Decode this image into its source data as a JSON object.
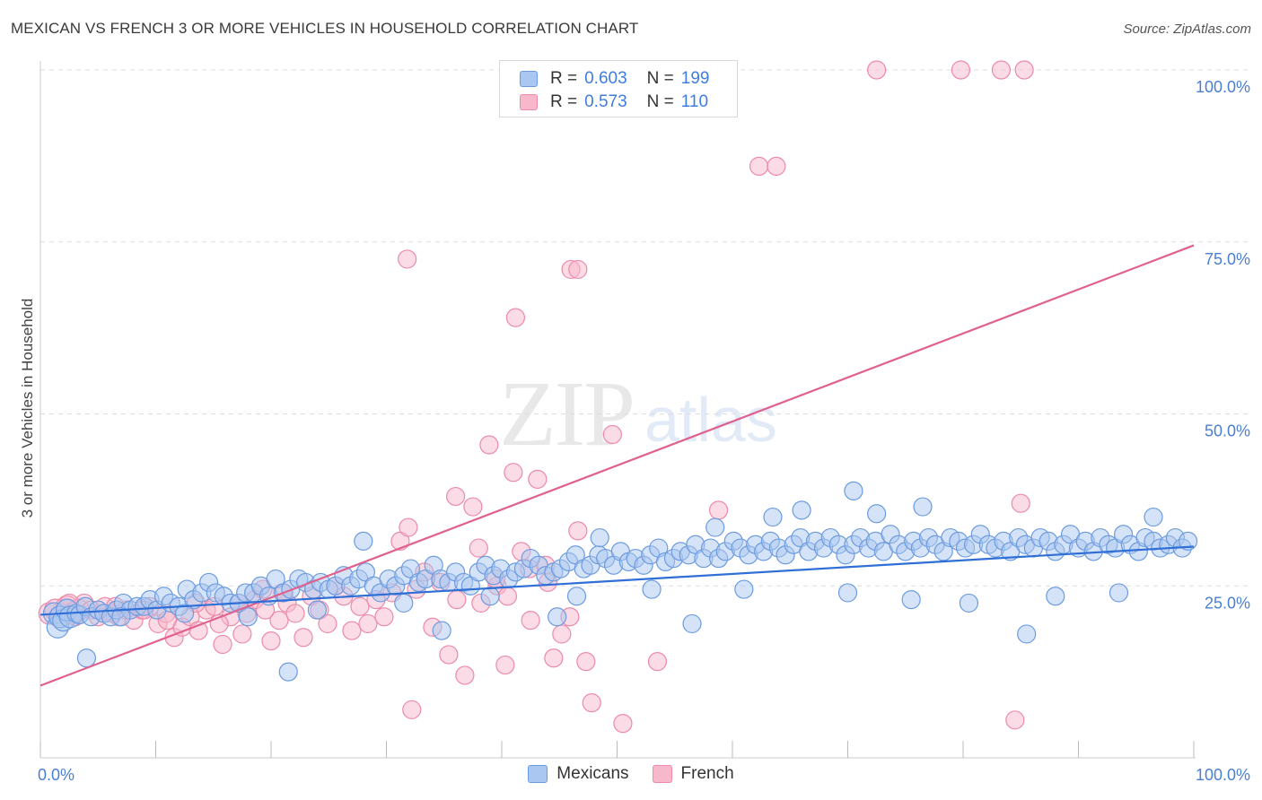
{
  "title": "MEXICAN VS FRENCH 3 OR MORE VEHICLES IN HOUSEHOLD CORRELATION CHART",
  "source": "Source: ZipAtlas.com",
  "watermark": {
    "zip": "ZIP",
    "atlas": "atlas"
  },
  "legend": {
    "r_label": "R =",
    "n_label": "N =",
    "mexicans": {
      "r": "0.603",
      "n": "199"
    },
    "french": {
      "r": "0.573",
      "n": "110"
    }
  },
  "colors": {
    "mexicans_fill": "#a9c7f0",
    "mexicans_stroke": "#6c9be0",
    "mexicans_line": "#2f6fd6",
    "french_fill": "#f7b8cb",
    "french_stroke": "#ec8aa8",
    "french_line": "#e0608e",
    "grid": "#dddddd",
    "tick_text": "#4a7fd4"
  },
  "chart_data": {
    "type": "scatter",
    "title": "MEXICAN VS FRENCH 3 OR MORE VEHICLES IN HOUSEHOLD CORRELATION CHART",
    "xlabel": "",
    "ylabel": "3 or more Vehicles in Household",
    "xlim": [
      0,
      100
    ],
    "ylim": [
      0,
      100
    ],
    "x_tick_labels": [
      "0.0%",
      "100.0%"
    ],
    "y_ticks": [
      25,
      50,
      75,
      100
    ],
    "y_tick_labels": [
      "25.0%",
      "50.0%",
      "75.0%",
      "100.0%"
    ],
    "grid": true,
    "legend_position": "bottom",
    "series": [
      {
        "name": "Mexicans",
        "r": 0.603,
        "n": 199,
        "trend": {
          "x": [
            0,
            100
          ],
          "y": [
            20.8,
            30.7
          ]
        },
        "points": [
          [
            1.2,
            21.0
          ],
          [
            1.5,
            19.0
          ],
          [
            1.7,
            20.5
          ],
          [
            2.0,
            20.0
          ],
          [
            2.3,
            21.5
          ],
          [
            2.6,
            20.5
          ],
          [
            3.1,
            21.0
          ],
          [
            3.4,
            20.8
          ],
          [
            3.9,
            22.0
          ],
          [
            4.4,
            20.5
          ],
          [
            5.0,
            21.5
          ],
          [
            5.5,
            21.0
          ],
          [
            6.1,
            20.5
          ],
          [
            6.6,
            21.5
          ],
          [
            7.2,
            22.5
          ],
          [
            7.8,
            21.5
          ],
          [
            8.4,
            22.0
          ],
          [
            9.0,
            22.0
          ],
          [
            9.5,
            23.0
          ],
          [
            10.1,
            21.5
          ],
          [
            10.7,
            23.5
          ],
          [
            11.3,
            22.5
          ],
          [
            12.0,
            22.0
          ],
          [
            12.7,
            24.5
          ],
          [
            13.3,
            23.0
          ],
          [
            14.0,
            24.0
          ],
          [
            14.6,
            25.5
          ],
          [
            15.2,
            24.0
          ],
          [
            15.9,
            23.5
          ],
          [
            16.5,
            22.5
          ],
          [
            17.2,
            22.5
          ],
          [
            17.8,
            24.0
          ],
          [
            18.5,
            24.0
          ],
          [
            19.1,
            25.0
          ],
          [
            19.8,
            23.5
          ],
          [
            20.4,
            26.0
          ],
          [
            21.1,
            24.0
          ],
          [
            21.7,
            24.5
          ],
          [
            22.4,
            26.0
          ],
          [
            23.0,
            25.5
          ],
          [
            23.7,
            24.5
          ],
          [
            24.3,
            25.5
          ],
          [
            25.0,
            24.5
          ],
          [
            25.6,
            25.0
          ],
          [
            26.3,
            26.5
          ],
          [
            26.9,
            25.0
          ],
          [
            27.6,
            26.0
          ],
          [
            28.2,
            27.0
          ],
          [
            28.9,
            25.0
          ],
          [
            29.5,
            24.0
          ],
          [
            30.2,
            26.0
          ],
          [
            30.8,
            25.0
          ],
          [
            31.5,
            26.5
          ],
          [
            32.1,
            27.5
          ],
          [
            32.8,
            25.5
          ],
          [
            33.4,
            26.0
          ],
          [
            34.1,
            28.0
          ],
          [
            34.7,
            26.0
          ],
          [
            35.4,
            25.5
          ],
          [
            36.0,
            27.0
          ],
          [
            36.7,
            25.5
          ],
          [
            37.3,
            25.0
          ],
          [
            38.0,
            27.0
          ],
          [
            38.6,
            28.0
          ],
          [
            39.3,
            26.5
          ],
          [
            39.9,
            27.5
          ],
          [
            40.6,
            26.0
          ],
          [
            41.2,
            27.0
          ],
          [
            41.9,
            27.5
          ],
          [
            42.5,
            29.0
          ],
          [
            43.2,
            28.0
          ],
          [
            43.8,
            26.5
          ],
          [
            44.5,
            27.0
          ],
          [
            45.1,
            27.5
          ],
          [
            45.8,
            28.5
          ],
          [
            46.4,
            29.5
          ],
          [
            47.1,
            27.5
          ],
          [
            47.7,
            28.0
          ],
          [
            48.4,
            29.5
          ],
          [
            49.0,
            29.0
          ],
          [
            49.7,
            28.0
          ],
          [
            50.3,
            30.0
          ],
          [
            51.0,
            28.5
          ],
          [
            51.6,
            29.0
          ],
          [
            52.3,
            28.0
          ],
          [
            52.9,
            29.5
          ],
          [
            53.6,
            30.5
          ],
          [
            54.2,
            28.5
          ],
          [
            54.9,
            29.0
          ],
          [
            55.5,
            30.0
          ],
          [
            56.2,
            29.5
          ],
          [
            56.8,
            31.0
          ],
          [
            57.5,
            29.0
          ],
          [
            58.1,
            30.5
          ],
          [
            58.8,
            29.0
          ],
          [
            59.4,
            30.0
          ],
          [
            60.1,
            31.5
          ],
          [
            60.7,
            30.5
          ],
          [
            61.4,
            29.5
          ],
          [
            62.0,
            31.0
          ],
          [
            62.7,
            30.0
          ],
          [
            63.3,
            31.5
          ],
          [
            64.0,
            30.5
          ],
          [
            64.6,
            29.5
          ],
          [
            65.3,
            31.0
          ],
          [
            65.9,
            32.0
          ],
          [
            66.6,
            30.0
          ],
          [
            67.2,
            31.5
          ],
          [
            67.9,
            30.5
          ],
          [
            68.5,
            32.0
          ],
          [
            69.2,
            31.0
          ],
          [
            69.8,
            29.5
          ],
          [
            70.5,
            31.0
          ],
          [
            71.1,
            32.0
          ],
          [
            71.8,
            30.5
          ],
          [
            72.4,
            31.5
          ],
          [
            73.1,
            30.0
          ],
          [
            73.7,
            32.5
          ],
          [
            74.4,
            31.0
          ],
          [
            75.0,
            30.0
          ],
          [
            75.7,
            31.5
          ],
          [
            76.3,
            30.5
          ],
          [
            77.0,
            32.0
          ],
          [
            77.6,
            31.0
          ],
          [
            78.3,
            30.0
          ],
          [
            78.9,
            32.0
          ],
          [
            79.6,
            31.5
          ],
          [
            80.2,
            30.5
          ],
          [
            80.9,
            31.0
          ],
          [
            81.5,
            32.5
          ],
          [
            82.2,
            31.0
          ],
          [
            82.8,
            30.5
          ],
          [
            83.5,
            31.5
          ],
          [
            84.1,
            30.0
          ],
          [
            84.8,
            32.0
          ],
          [
            85.4,
            31.0
          ],
          [
            86.1,
            30.5
          ],
          [
            86.7,
            32.0
          ],
          [
            87.4,
            31.5
          ],
          [
            88.0,
            30.0
          ],
          [
            88.7,
            31.0
          ],
          [
            89.3,
            32.5
          ],
          [
            90.0,
            30.5
          ],
          [
            90.6,
            31.5
          ],
          [
            91.3,
            30.0
          ],
          [
            91.9,
            32.0
          ],
          [
            92.6,
            31.0
          ],
          [
            93.2,
            30.5
          ],
          [
            93.9,
            32.5
          ],
          [
            94.5,
            31.0
          ],
          [
            95.2,
            30.0
          ],
          [
            95.8,
            32.0
          ],
          [
            96.5,
            31.5
          ],
          [
            97.1,
            30.5
          ],
          [
            97.8,
            31.0
          ],
          [
            98.4,
            32.0
          ],
          [
            99.0,
            30.5
          ],
          [
            99.5,
            31.5
          ],
          [
            4.0,
            14.5
          ],
          [
            21.5,
            12.5
          ],
          [
            34.8,
            18.5
          ],
          [
            44.8,
            20.5
          ],
          [
            56.5,
            19.5
          ],
          [
            70.5,
            38.8
          ],
          [
            85.5,
            18.0
          ],
          [
            28.0,
            31.5
          ],
          [
            48.5,
            32.0
          ],
          [
            58.5,
            33.5
          ],
          [
            63.5,
            35.0
          ],
          [
            66.0,
            36.0
          ],
          [
            72.5,
            35.5
          ],
          [
            76.5,
            36.5
          ],
          [
            96.5,
            35.0
          ],
          [
            93.5,
            24.0
          ],
          [
            88.0,
            23.5
          ],
          [
            80.5,
            22.5
          ],
          [
            75.5,
            23.0
          ],
          [
            70.0,
            24.0
          ],
          [
            61.0,
            24.5
          ],
          [
            53.0,
            24.5
          ],
          [
            46.5,
            23.5
          ],
          [
            39.0,
            23.5
          ],
          [
            31.5,
            22.5
          ],
          [
            24.0,
            21.5
          ],
          [
            18.0,
            20.5
          ],
          [
            12.5,
            21.0
          ],
          [
            7.0,
            20.5
          ]
        ]
      },
      {
        "name": "French",
        "r": 0.573,
        "n": 110,
        "trend": {
          "x": [
            0,
            100
          ],
          "y": [
            10.5,
            74.5
          ]
        },
        "points": [
          [
            0.8,
            21.0
          ],
          [
            1.3,
            21.5
          ],
          [
            1.8,
            20.5
          ],
          [
            2.3,
            22.0
          ],
          [
            2.8,
            21.0
          ],
          [
            3.3,
            21.5
          ],
          [
            3.8,
            22.5
          ],
          [
            4.4,
            21.5
          ],
          [
            5.0,
            20.5
          ],
          [
            5.6,
            22.0
          ],
          [
            6.2,
            21.0
          ],
          [
            6.8,
            20.5
          ],
          [
            7.4,
            21.5
          ],
          [
            8.1,
            20.0
          ],
          [
            8.8,
            21.5
          ],
          [
            9.5,
            22.0
          ],
          [
            10.2,
            19.5
          ],
          [
            10.9,
            21.0
          ],
          [
            11.6,
            17.5
          ],
          [
            12.3,
            19.0
          ],
          [
            13.0,
            20.5
          ],
          [
            13.7,
            18.5
          ],
          [
            14.4,
            21.5
          ],
          [
            15.1,
            22.0
          ],
          [
            15.8,
            16.5
          ],
          [
            16.5,
            20.5
          ],
          [
            17.2,
            22.5
          ],
          [
            17.9,
            21.0
          ],
          [
            18.6,
            23.0
          ],
          [
            19.3,
            24.5
          ],
          [
            20.0,
            17.0
          ],
          [
            20.7,
            20.0
          ],
          [
            21.4,
            22.5
          ],
          [
            22.1,
            21.0
          ],
          [
            22.8,
            17.5
          ],
          [
            23.5,
            23.5
          ],
          [
            24.2,
            21.5
          ],
          [
            24.9,
            19.5
          ],
          [
            25.6,
            25.0
          ],
          [
            26.3,
            23.5
          ],
          [
            27.0,
            18.5
          ],
          [
            27.7,
            22.0
          ],
          [
            28.4,
            19.5
          ],
          [
            29.1,
            23.0
          ],
          [
            29.8,
            20.5
          ],
          [
            30.5,
            24.0
          ],
          [
            31.2,
            31.5
          ],
          [
            31.9,
            33.5
          ],
          [
            32.6,
            24.5
          ],
          [
            33.3,
            27.0
          ],
          [
            34.0,
            19.0
          ],
          [
            34.7,
            25.5
          ],
          [
            35.4,
            15.0
          ],
          [
            36.1,
            23.0
          ],
          [
            36.8,
            12.0
          ],
          [
            37.5,
            36.5
          ],
          [
            38.2,
            22.5
          ],
          [
            38.9,
            45.5
          ],
          [
            39.6,
            25.0
          ],
          [
            40.3,
            13.5
          ],
          [
            41.0,
            41.5
          ],
          [
            41.7,
            30.0
          ],
          [
            42.4,
            27.5
          ],
          [
            43.1,
            40.5
          ],
          [
            43.8,
            28.0
          ],
          [
            44.5,
            14.5
          ],
          [
            45.2,
            18.0
          ],
          [
            45.9,
            20.5
          ],
          [
            46.6,
            33.0
          ],
          [
            47.3,
            14.0
          ],
          [
            47.8,
            8.0
          ],
          [
            49.6,
            47.0
          ],
          [
            50.5,
            5.0
          ],
          [
            53.5,
            14.0
          ],
          [
            58.8,
            36.0
          ],
          [
            62.3,
            86.0
          ],
          [
            63.8,
            86.0
          ],
          [
            72.5,
            100.0
          ],
          [
            79.8,
            100.0
          ],
          [
            84.5,
            5.5
          ],
          [
            85.0,
            37.0
          ],
          [
            83.3,
            100.0
          ],
          [
            85.3,
            100.0
          ],
          [
            46.5,
            100.0
          ],
          [
            48.3,
            100.0
          ],
          [
            47.3,
            100.0
          ],
          [
            31.8,
            72.5
          ],
          [
            46.0,
            71.0
          ],
          [
            46.6,
            71.0
          ],
          [
            41.2,
            64.0
          ],
          [
            32.2,
            7.0
          ],
          [
            36.0,
            38.0
          ],
          [
            38.0,
            30.5
          ],
          [
            39.5,
            26.0
          ],
          [
            40.5,
            23.5
          ],
          [
            42.5,
            20.0
          ],
          [
            44.0,
            25.5
          ],
          [
            2.5,
            22.5
          ],
          [
            3.0,
            20.5
          ],
          [
            5.5,
            21.0
          ],
          [
            6.5,
            22.0
          ],
          [
            9.0,
            21.5
          ],
          [
            11.0,
            20.0
          ],
          [
            13.5,
            22.5
          ],
          [
            15.5,
            19.5
          ],
          [
            17.5,
            18.0
          ],
          [
            19.5,
            21.5
          ],
          [
            21.0,
            24.0
          ]
        ]
      }
    ]
  }
}
